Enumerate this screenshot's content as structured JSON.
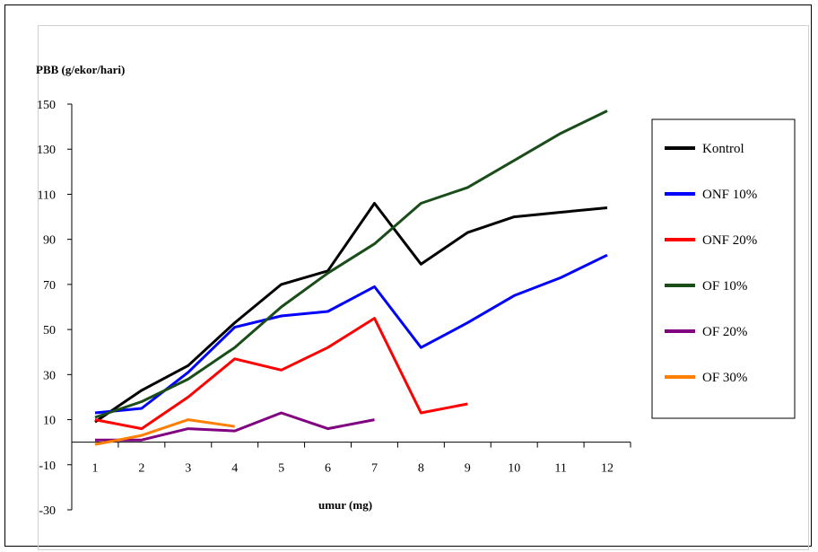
{
  "chart_data": {
    "type": "line",
    "ylabel": "PBB (g/ekor/hari)",
    "xlabel": "umur (mg)",
    "categories": [
      "1",
      "2",
      "3",
      "4",
      "5",
      "6",
      "7",
      "8",
      "9",
      "10",
      "11",
      "12"
    ],
    "y_ticks": [
      "150",
      "130",
      "110",
      "90",
      "70",
      "50",
      "30",
      "10",
      "-10",
      "-30"
    ],
    "ylim": [
      -30,
      150
    ],
    "grid": false,
    "legend_position": "right",
    "series": [
      {
        "name": "Kontrol",
        "color": "#000000",
        "values": [
          9,
          23,
          34,
          53,
          70,
          76,
          106,
          79,
          93,
          100,
          102,
          104
        ]
      },
      {
        "name": "ONF 10%",
        "color": "#0000ff",
        "values": [
          13,
          15,
          31,
          51,
          56,
          58,
          69,
          42,
          53,
          65,
          73,
          83
        ]
      },
      {
        "name": "ONF 20%",
        "color": "#ff0000",
        "values": [
          10,
          6,
          20,
          37,
          32,
          42,
          55,
          13,
          17,
          null,
          null,
          null
        ]
      },
      {
        "name": "OF 10%",
        "color": "#1a4d1a",
        "values": [
          11,
          18,
          28,
          42,
          60,
          75,
          88,
          106,
          113,
          125,
          137,
          147
        ]
      },
      {
        "name": "OF 20%",
        "color": "#800080",
        "values": [
          1,
          1,
          6,
          5,
          13,
          6,
          10,
          null,
          null,
          null,
          null,
          null
        ]
      },
      {
        "name": "OF 30%",
        "color": "#ff7f00",
        "values": [
          -1,
          3,
          10,
          7,
          null,
          null,
          null,
          null,
          null,
          null,
          null,
          null
        ]
      }
    ]
  }
}
